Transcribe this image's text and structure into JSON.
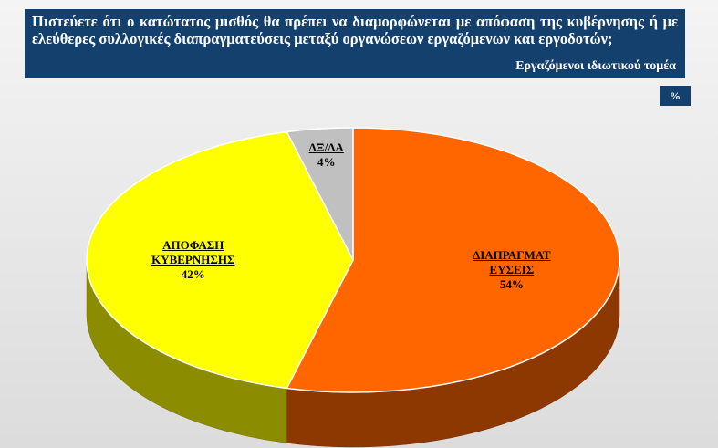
{
  "chart_data": {
    "type": "pie",
    "title": "Πιστεύετε ότι ο κατώτατος μισθός θα πρέπει να διαμορφώνεται με απόφαση της κυβέρνησης ή με ελεύθερες συλλογικές διαπραγματεύσεις μεταξύ οργανώσεων εργαζόμενων και εργοδοτών;",
    "subtitle": "Εργαζόμενοι ιδιωτικού τομέα",
    "unit": "%",
    "categories": [
      "ΔΙΑΠΡΑΓΜΑΤΕΥΣΕΙΣ",
      "ΑΠΟΦΑΣΗ ΚΥΒΕΡΝΗΣΗΣ",
      "ΔΞ/ΔΑ"
    ],
    "values": [
      54,
      42,
      4
    ],
    "value_labels": [
      "54%",
      "42%",
      "4%"
    ],
    "colors": [
      "#ff6600",
      "#ffff00",
      "#c0c0c0"
    ]
  }
}
